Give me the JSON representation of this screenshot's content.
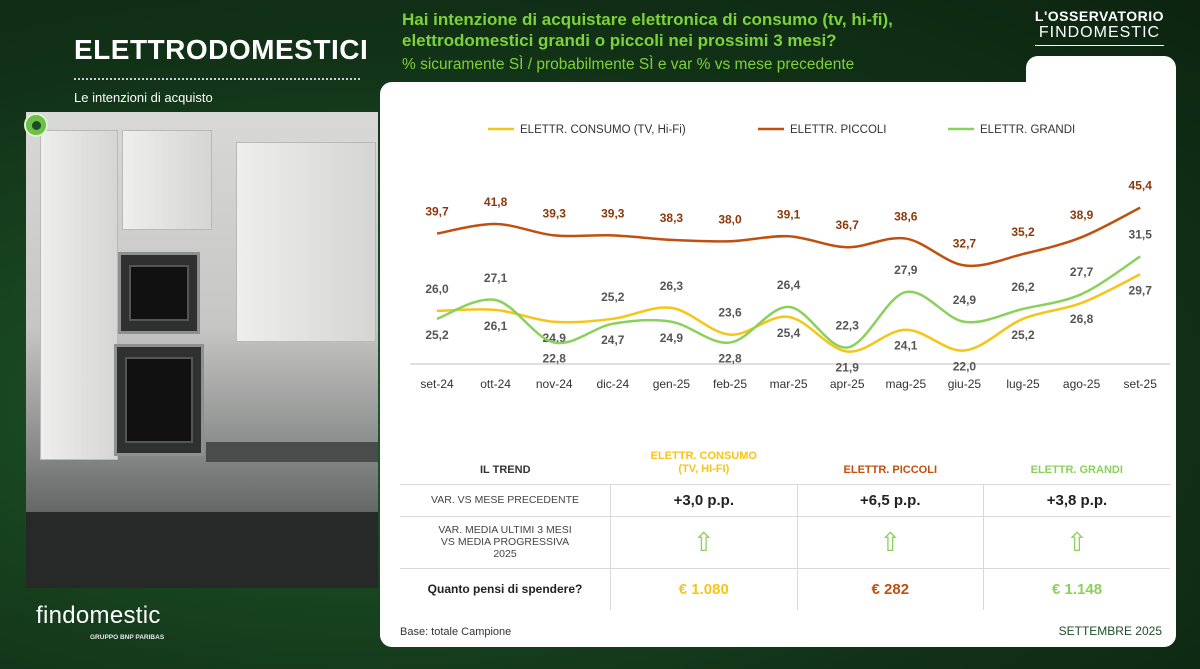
{
  "header": {
    "section_title": "ELETTRODOMESTICI",
    "section_subtitle": "Le intenzioni di acquisto",
    "question_line1": "Hai intenzione di acquistare elettronica di consumo (tv, hi-fi),",
    "question_line2": "elettrodomestici grandi o piccoli nei prossimi 3 mesi?",
    "question_sub": "% sicuramente SÌ / probabilmente SÌ e var % vs mese precedente",
    "observatory_line1": "L'OSSERVATORIO",
    "observatory_line2": "FINDOMESTIC"
  },
  "brand": {
    "logo": "findomestic",
    "logo_sub": "GRUPPO BNP PARIBAS"
  },
  "colors": {
    "consumo": "#f5c518",
    "piccoli": "#c0500f",
    "grandi": "#8ad15c",
    "accent_green": "#7dd23b",
    "background": "#143a1c"
  },
  "chart_data": {
    "type": "line",
    "categories": [
      "set-24",
      "ott-24",
      "nov-24",
      "dic-24",
      "gen-25",
      "feb-25",
      "mar-25",
      "apr-25",
      "mag-25",
      "giu-25",
      "lug-25",
      "ago-25",
      "set-25"
    ],
    "series": [
      {
        "name": "ELETTR. CONSUMO (TV, Hi-Fi)",
        "values": [
          26.0,
          26.1,
          24.9,
          25.2,
          26.3,
          23.6,
          25.4,
          21.9,
          24.1,
          22.0,
          25.2,
          26.8,
          29.7
        ]
      },
      {
        "name": "ELETTR. PICCOLI",
        "values": [
          39.7,
          41.8,
          39.3,
          39.3,
          38.3,
          38.0,
          39.1,
          36.7,
          38.6,
          32.7,
          35.2,
          38.9,
          45.4
        ]
      },
      {
        "name": "ELETTR. GRANDI",
        "values": [
          25.2,
          27.1,
          22.8,
          24.7,
          24.9,
          22.8,
          26.4,
          22.3,
          27.9,
          24.9,
          26.2,
          27.7,
          31.5
        ]
      }
    ],
    "legend": "top"
  },
  "trend": {
    "title": "IL TREND",
    "columns": [
      "ELETTR. CONSUMO\n(TV, HI-FI)",
      "ELETTR. PICCOLI",
      "ELETTR. GRANDI"
    ],
    "row1_label": "VAR. VS MESE PRECEDENTE",
    "row1_values": [
      "+3,0 p.p.",
      "+6,5 p.p.",
      "+3,8 p.p."
    ],
    "row2_label": "VAR.  MEDIA ULTIMI 3 MESI VS MEDIA PROGRESSIVA  2025",
    "row2_icons": [
      "arrow-up-icon",
      "arrow-up-icon",
      "arrow-up-icon"
    ],
    "row3_label": "Quanto pensi di spendere?",
    "row3_values": [
      "€ 1.080",
      "€ 282",
      "€ 1.148"
    ]
  },
  "footer": {
    "base": "Base: totale Campione",
    "month": "SETTEMBRE 2025"
  }
}
